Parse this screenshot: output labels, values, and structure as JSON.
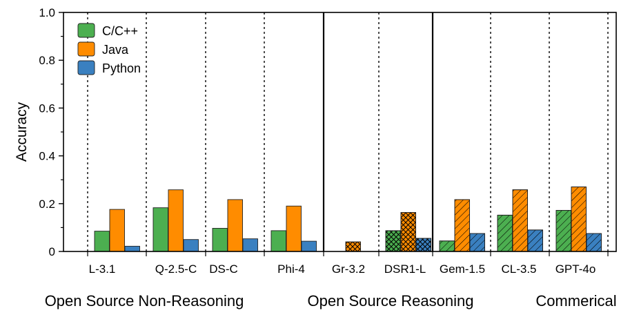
{
  "chart_data": {
    "type": "bar",
    "ylabel": "Accuracy",
    "ylim": [
      0,
      1.0
    ],
    "yticks": [
      "0",
      "0.2",
      "0.4",
      "0.6",
      "0.8",
      "1.0"
    ],
    "ytick_values": [
      0,
      0.2,
      0.4,
      0.6,
      0.8,
      1.0
    ],
    "categories": [
      "L-3.1",
      "Q-2.5-C",
      "DS-C",
      "Phi-4",
      "Gr-3.2",
      "DSR1-L",
      "Gem-1.5",
      "CL-3.5",
      "GPT-4o"
    ],
    "series": [
      {
        "name": "C/C++",
        "color": "#4caf50",
        "values": [
          0.085,
          0.183,
          0.097,
          0.087,
          0,
          0.087,
          0.044,
          0.152,
          0.172
        ]
      },
      {
        "name": "Java",
        "color": "#ff8c00",
        "values": [
          0.176,
          0.258,
          0.217,
          0.19,
          0.04,
          0.163,
          0.217,
          0.258,
          0.27
        ]
      },
      {
        "name": "Python",
        "color": "#3a80c0",
        "values": [
          0.022,
          0.05,
          0.053,
          0.043,
          0,
          0.055,
          0.075,
          0.09,
          0.075
        ]
      }
    ],
    "hatch_by_category": [
      "none",
      "none",
      "none",
      "none",
      "cross",
      "cross",
      "diag",
      "diag",
      "diag"
    ],
    "groups": [
      {
        "label": "Open Source Non-Reasoning",
        "categories": [
          0,
          1,
          2,
          3
        ]
      },
      {
        "label": "Open Source Reasoning",
        "categories": [
          4,
          5
        ]
      },
      {
        "label": "Commerical",
        "categories": [
          6,
          7,
          8
        ]
      }
    ],
    "legend_position": "top-left"
  }
}
